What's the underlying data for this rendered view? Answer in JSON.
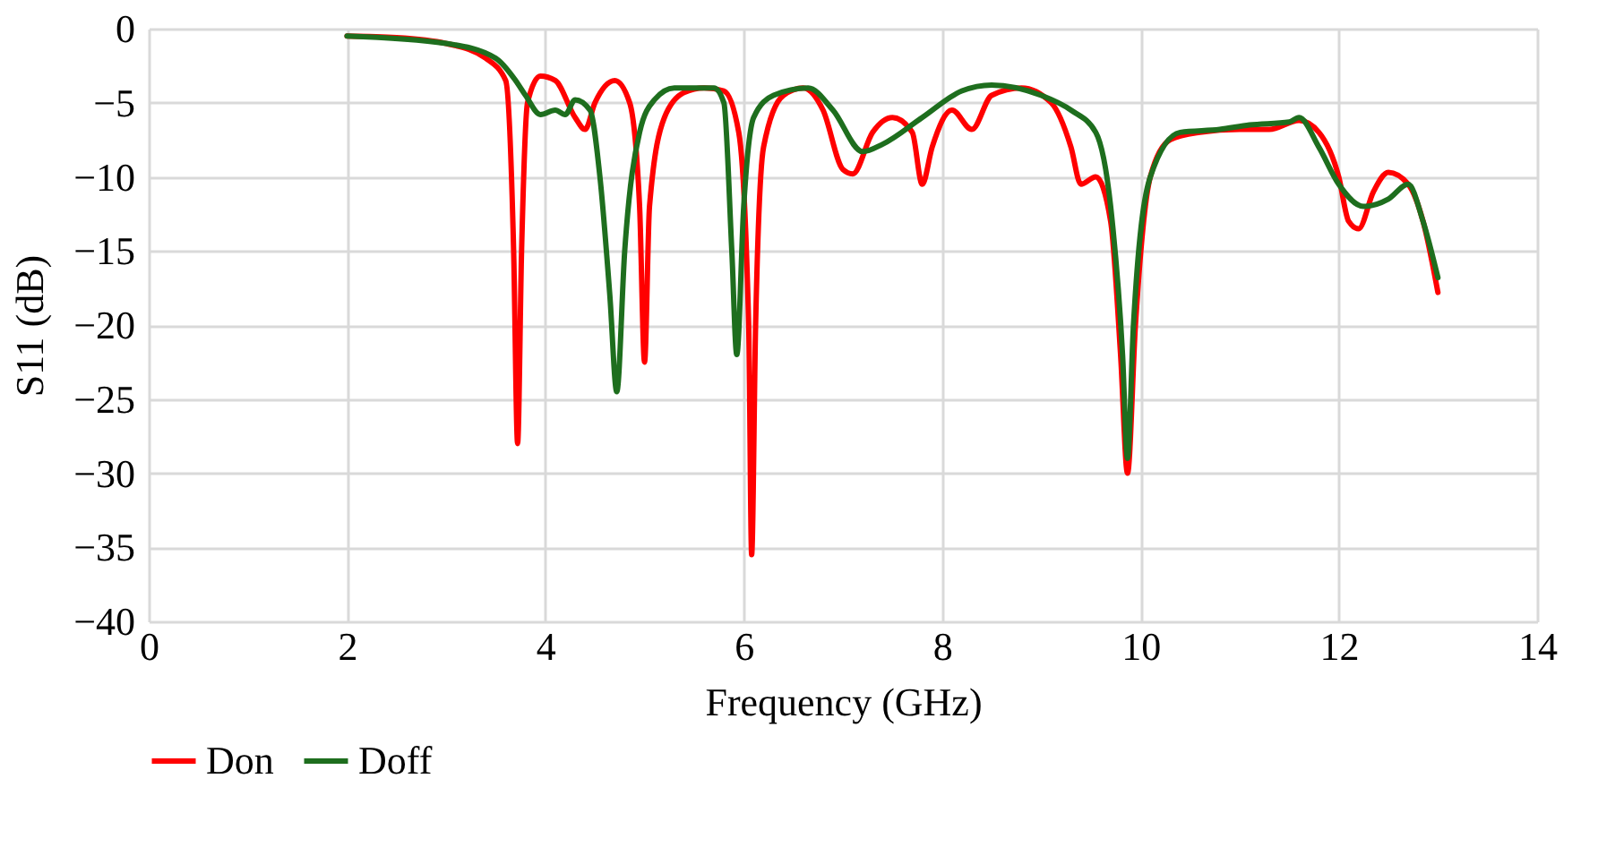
{
  "chart_data": {
    "type": "line",
    "xlabel": "Frequency (GHz)",
    "ylabel": "S11 (dB)",
    "xlim": [
      0,
      14
    ],
    "xticks": [
      0,
      2,
      4,
      6,
      8,
      10,
      12,
      14
    ],
    "ylim": [
      -40,
      0
    ],
    "yticks": [
      0,
      -5,
      -10,
      -15,
      -20,
      -25,
      -30,
      -35,
      -40
    ],
    "grid": true,
    "legend": "bottom",
    "marker": "none",
    "line_style": "solid",
    "series": [
      {
        "name": "Don",
        "color": "#ff0000",
        "x": [
          2,
          2.5,
          3,
          3.4,
          3.6,
          3.68,
          3.72,
          3.76,
          3.82,
          3.95,
          4.1,
          4.3,
          4.4,
          4.5,
          4.7,
          4.85,
          4.95,
          5.0,
          5.05,
          5.2,
          5.4,
          5.6,
          5.8,
          5.95,
          6.05,
          6.08,
          6.12,
          6.2,
          6.4,
          6.6,
          6.8,
          7.0,
          7.1,
          7.3,
          7.5,
          7.7,
          7.8,
          7.9,
          8.1,
          8.3,
          8.5,
          8.8,
          9.1,
          9.3,
          9.4,
          9.55,
          9.7,
          9.8,
          9.87,
          9.95,
          10.1,
          10.3,
          10.6,
          11,
          11.3,
          11.6,
          11.8,
          12.0,
          12.1,
          12.2,
          12.35,
          12.5,
          12.7,
          12.85,
          13
        ],
        "values": [
          -0.5,
          -0.6,
          -1,
          -2,
          -3.5,
          -15,
          -28,
          -15,
          -5,
          -3.2,
          -3.5,
          -6,
          -6.8,
          -5,
          -3.5,
          -5,
          -12,
          -22.5,
          -12,
          -6,
          -4.3,
          -4,
          -4.2,
          -7,
          -20,
          -35.5,
          -20,
          -8,
          -4.5,
          -4,
          -5.5,
          -9.5,
          -9.8,
          -7,
          -6,
          -7,
          -10.5,
          -8,
          -5.5,
          -6.8,
          -4.5,
          -4,
          -5,
          -8,
          -10.5,
          -10,
          -13,
          -22,
          -30,
          -20,
          -10,
          -7.5,
          -7,
          -6.8,
          -6.8,
          -6.2,
          -7,
          -10,
          -13,
          -13.5,
          -11,
          -9.7,
          -10.5,
          -13,
          -17.8
        ]
      },
      {
        "name": "Doff",
        "color": "#1e6e1e",
        "x": [
          2,
          3,
          3.5,
          3.7,
          3.8,
          3.95,
          4.1,
          4.2,
          4.3,
          4.45,
          4.55,
          4.65,
          4.72,
          4.8,
          4.95,
          5.1,
          5.3,
          5.7,
          5.8,
          5.88,
          5.93,
          6.0,
          6.1,
          6.3,
          6.65,
          6.9,
          7.2,
          7.4,
          7.8,
          8.2,
          8.5,
          9.0,
          9.3,
          9.55,
          9.7,
          9.82,
          9.87,
          9.93,
          10.1,
          10.4,
          10.8,
          11.1,
          11.5,
          11.6,
          11.8,
          12.0,
          12.25,
          12.5,
          12.7,
          12.85,
          13
        ],
        "values": [
          -0.5,
          -1,
          -2,
          -3.5,
          -4.5,
          -5.8,
          -5.5,
          -5.8,
          -4.8,
          -5.5,
          -10,
          -18,
          -24.5,
          -15,
          -7,
          -4.8,
          -4,
          -4,
          -5,
          -15,
          -22,
          -12,
          -6,
          -4.5,
          -4,
          -5.5,
          -8.3,
          -7.8,
          -6,
          -4.2,
          -3.8,
          -4.5,
          -5.5,
          -7,
          -12,
          -22,
          -29,
          -20,
          -10,
          -7,
          -6.8,
          -6.5,
          -6.3,
          -6,
          -8,
          -10.5,
          -12,
          -11.5,
          -10.5,
          -13,
          -16.8
        ]
      }
    ]
  }
}
